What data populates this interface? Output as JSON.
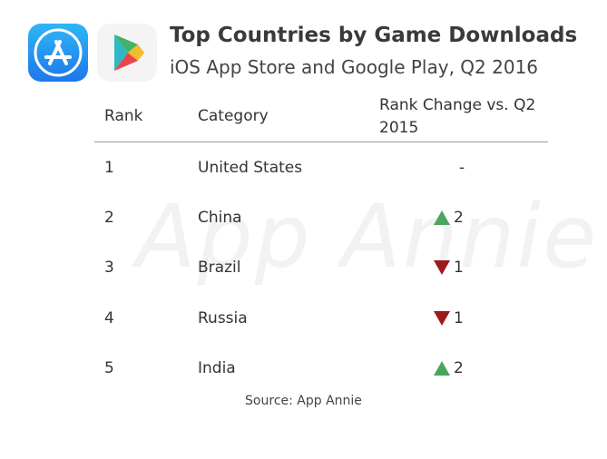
{
  "header": {
    "title": "Top Countries by Game Downloads",
    "subtitle": "iOS App Store and Google Play, Q2 2016",
    "icons": [
      "app-store-icon",
      "google-play-icon"
    ]
  },
  "watermark": "App Annie",
  "colors": {
    "up": "#4aa55f",
    "down": "#9b1c1a",
    "rule": "#999999"
  },
  "chart_data": {
    "type": "table",
    "columns": [
      "Rank",
      "Category",
      "Rank Change vs. Q2 2015"
    ],
    "rows": [
      {
        "rank": "1",
        "category": "United States",
        "change": "-",
        "direction": "none"
      },
      {
        "rank": "2",
        "category": "China",
        "change": "2",
        "direction": "up"
      },
      {
        "rank": "3",
        "category": "Brazil",
        "change": "1",
        "direction": "down"
      },
      {
        "rank": "4",
        "category": "Russia",
        "change": "1",
        "direction": "down"
      },
      {
        "rank": "5",
        "category": "India",
        "change": "2",
        "direction": "up"
      }
    ],
    "source": "Source: App Annie"
  }
}
